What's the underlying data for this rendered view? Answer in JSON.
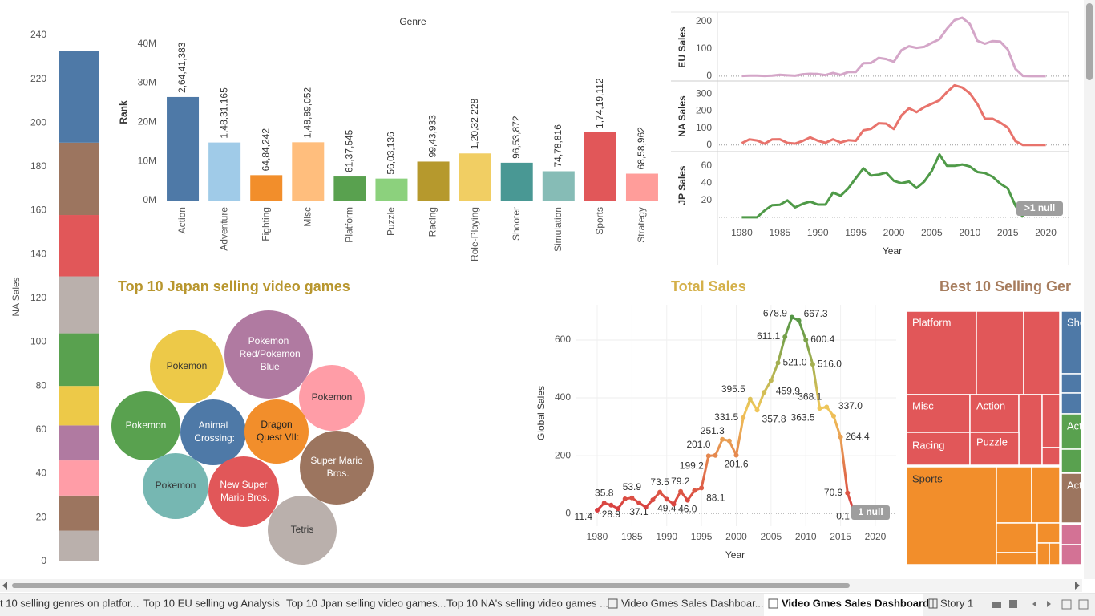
{
  "chart_data": [
    {
      "type": "stacked-bar",
      "y_label": "NA Sales",
      "ylim": [
        -3,
        244
      ],
      "yticks": [
        0,
        20,
        40,
        60,
        80,
        100,
        120,
        140,
        160,
        180,
        200,
        220,
        240
      ],
      "segments": [
        {
          "color": "#bab0ac",
          "value": 14
        },
        {
          "color": "#9c755f",
          "value": 16
        },
        {
          "color": "#ff9da7",
          "value": 16
        },
        {
          "color": "#b07aa1",
          "value": 16
        },
        {
          "color": "#edc948",
          "value": 18
        },
        {
          "color": "#59a14f",
          "value": 24
        },
        {
          "color": "#bab0ac",
          "value": 26
        },
        {
          "color": "#e15759",
          "value": 28
        },
        {
          "color": "#9c755f",
          "value": 33
        },
        {
          "color": "#4e79a7",
          "value": 42
        }
      ]
    },
    {
      "type": "bar",
      "title": "Genre",
      "y_label": "Rank",
      "categories": [
        "Action",
        "Adventure",
        "Fighting",
        "Misc",
        "Platform",
        "Puzzle",
        "Racing",
        "Role-Playing",
        "Shooter",
        "Simulation",
        "Sports",
        "Strategy"
      ],
      "values": [
        26441383,
        14831165,
        6484242,
        14889052,
        6137545,
        5603136,
        9943933,
        12032228,
        9653872,
        7478816,
        17419112,
        6858962
      ],
      "value_labels": [
        "2,64,41,383",
        "1,48,31,165",
        "64,84,242",
        "1,48,89,052",
        "61,37,545",
        "56,03,136",
        "99,43,933",
        "1,20,32,228",
        "96,53,872",
        "74,78,816",
        "1,74,19,112",
        "68,58,962"
      ],
      "colors": [
        "#4e79a7",
        "#a0cbe8",
        "#f28e2b",
        "#ffbe7d",
        "#59a14f",
        "#8cd17d",
        "#b6992d",
        "#f1ce63",
        "#499894",
        "#86bcb6",
        "#e15759",
        "#ff9d9a"
      ],
      "ylim": [
        0,
        42000000
      ],
      "yticks": [
        {
          "value": 0,
          "label": "0M"
        },
        {
          "value": 10000000,
          "label": "10M"
        },
        {
          "value": 20000000,
          "label": "20M"
        },
        {
          "value": 30000000,
          "label": "30M"
        },
        {
          "value": 40000000,
          "label": "40M"
        }
      ]
    },
    {
      "type": "panel-lines",
      "x_label": "Year",
      "null_badge": ">1 null",
      "x": [
        1980,
        1981,
        1982,
        1983,
        1984,
        1985,
        1986,
        1987,
        1988,
        1989,
        1990,
        1991,
        1992,
        1993,
        1994,
        1995,
        1996,
        1997,
        1998,
        1999,
        2000,
        2001,
        2002,
        2003,
        2004,
        2005,
        2006,
        2007,
        2008,
        2009,
        2010,
        2011,
        2012,
        2013,
        2014,
        2015,
        2016,
        2017,
        2018,
        2019,
        2020
      ],
      "xlim": [
        1977,
        2023
      ],
      "xticks": [
        1980,
        1985,
        1990,
        1995,
        2000,
        2005,
        2010,
        2015,
        2020
      ],
      "panels": [
        {
          "y_label": "EU Sales",
          "color": "#d4a6c8",
          "ylim": [
            -18,
            229
          ],
          "yticks": [
            0,
            100,
            200
          ],
          "values": [
            0.7,
            1.9,
            1.6,
            0.8,
            2.1,
            4.7,
            2.8,
            1.4,
            6.6,
            8.4,
            7.6,
            3.9,
            11.7,
            4.7,
            14.9,
            14.9,
            47.3,
            48.3,
            66.9,
            62.7,
            52.7,
            94.9,
            109.7,
            103.8,
            107.3,
            121.6,
            135.4,
            173.5,
            205.2,
            214.3,
            191.0,
            129.4,
            118.8,
            128.4,
            126.8,
            97.7,
            26.8,
            0.7,
            0,
            0,
            0
          ]
        },
        {
          "y_label": "NA Sales",
          "color": "#e8736c",
          "ylim": [
            -39,
            377
          ],
          "yticks": [
            0,
            100,
            200,
            300
          ],
          "values": [
            10.6,
            33.4,
            26.9,
            7.8,
            33.3,
            33.7,
            12.5,
            8.5,
            23.9,
            45.2,
            25.5,
            12.8,
            33.9,
            15.1,
            28.2,
            24.8,
            86.8,
            94.8,
            128.4,
            126.1,
            94.5,
            173.8,
            216.2,
            193.6,
            222.4,
            242.6,
            263.1,
            311.1,
            351.4,
            338.9,
            304.2,
            241.1,
            154.9,
            154.8,
            131.9,
            102.8,
            22.7,
            0,
            0,
            0,
            0.3
          ]
        },
        {
          "y_label": "JP Sales",
          "color": "#4f9a48",
          "ylim": [
            -2,
            77
          ],
          "yticks": [
            20,
            40,
            60
          ],
          "values": [
            0,
            0,
            0,
            8.1,
            14.3,
            14.6,
            19.8,
            11.6,
            15.8,
            18.4,
            14.9,
            14.9,
            28.9,
            25.3,
            33.8,
            45.8,
            57.4,
            48.9,
            50.0,
            52.3,
            42.8,
            39.9,
            41.8,
            34.2,
            41.7,
            54.3,
            73.7,
            60.3,
            60.3,
            61.9,
            59.5,
            53.0,
            51.8,
            47.6,
            39.5,
            33.7,
            13.7,
            0.1,
            null,
            null,
            null
          ]
        }
      ]
    },
    {
      "type": "bubble",
      "title": "Top 10 Japan selling video games",
      "labels": [
        "Pokemon",
        "Pokemon Red/Pokemon Blue",
        "Pokemon",
        "Pokemon",
        "Animal Crossing:",
        "Dragon Quest VII:",
        "Super Mario Bros.",
        "Pokemon",
        "New Super Mario Bros.",
        "Tetris"
      ],
      "values": [
        7.15,
        10.22,
        5.68,
        6.25,
        5.68,
        5.41,
        7.15,
        5.68,
        6.54,
        6.25
      ],
      "colors": [
        "#edc948",
        "#b07aa1",
        "#ff9da7",
        "#59a14f",
        "#4e79a7",
        "#f28e2b",
        "#9c755f",
        "#76b7b2",
        "#e15759",
        "#bab0ac"
      ]
    },
    {
      "type": "line",
      "title": "Total Sales",
      "x_label": "Year",
      "y_label": "Global Sales",
      "null_badge": "1 null",
      "x": [
        1980,
        1981,
        1982,
        1983,
        1984,
        1985,
        1986,
        1987,
        1988,
        1989,
        1990,
        1991,
        1992,
        1993,
        1994,
        1995,
        1996,
        1997,
        1998,
        1999,
        2000,
        2001,
        2002,
        2003,
        2004,
        2005,
        2006,
        2007,
        2008,
        2009,
        2010,
        2011,
        2012,
        2013,
        2014,
        2015,
        2016,
        2017,
        2020
      ],
      "values": [
        11.4,
        35.8,
        28.9,
        16.8,
        50.4,
        53.9,
        37.1,
        21.7,
        47.2,
        73.5,
        49.4,
        32.2,
        76.2,
        46.0,
        79.2,
        88.1,
        199.2,
        201.0,
        256.5,
        251.3,
        201.6,
        331.5,
        395.5,
        357.8,
        419.3,
        459.9,
        521.0,
        611.1,
        678.9,
        667.3,
        600.4,
        516.0,
        363.5,
        368.1,
        337.0,
        264.4,
        70.9,
        0.1,
        0.3
      ],
      "value_labels": [
        "11.4",
        "35.8",
        "28.9",
        null,
        null,
        "53.9",
        "37.1",
        null,
        null,
        "73.5",
        "49.4",
        null,
        null,
        "46.0",
        "79.2",
        "88.1",
        "199.2",
        "201.0",
        null,
        "251.3",
        "201.6",
        "331.5",
        "395.5",
        "357.8",
        null,
        "459.9",
        "521.0",
        "611.1",
        "678.9",
        "667.3",
        "600.4",
        "516.0",
        "363.5",
        "368.1",
        "337.0",
        "264.4",
        "70.9",
        "0.1",
        "0.3"
      ],
      "xlim": [
        1977,
        2023
      ],
      "xticks": [
        1980,
        1985,
        1990,
        1995,
        2000,
        2005,
        2010,
        2015,
        2020
      ],
      "ylim": [
        -44,
        722
      ],
      "yticks": [
        0,
        200,
        400,
        600
      ],
      "color_scale": [
        "#d7393f",
        "#f0c75a",
        "#3f8f43"
      ]
    },
    {
      "type": "treemap",
      "title": "Best 10 Selling Ger",
      "labels": [
        "Platform",
        "Misc",
        "Action",
        "Racing",
        "Puzzle",
        "Sports",
        "Sho",
        "Act",
        "Act"
      ]
    }
  ],
  "tabs": [
    "t 10 selling genres on platfor...",
    "Top 10 EU selling vg Analysis",
    "Top 10 Jpan selling video games...",
    "Top 10 NA's selling video games ...",
    "Video Gmes Sales Dashboar...",
    "Video Gmes Sales Dashboard",
    "Story 1"
  ]
}
